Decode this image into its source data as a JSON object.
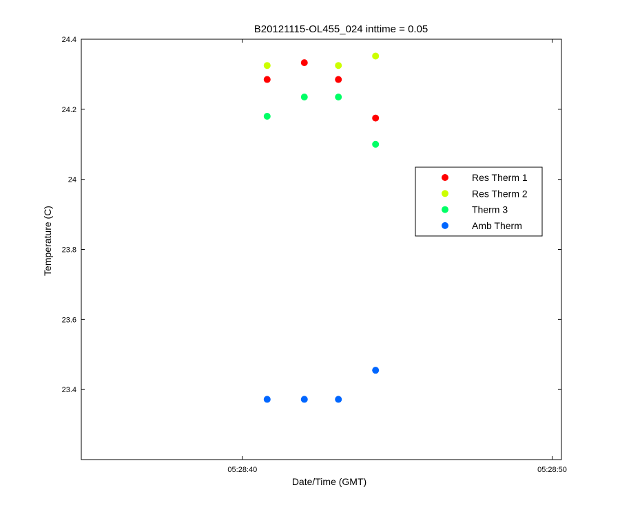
{
  "chart_data": {
    "type": "scatter",
    "title": "B20121115-OL455_024 inttime = 0.05",
    "xlabel": "Date/Time (GMT)",
    "ylabel": "Temperature (C)",
    "x_unit": "seconds",
    "xlim": [
      "05:28:34.8",
      "05:28:50.3"
    ],
    "ylim": [
      23.2,
      24.4
    ],
    "x_ticks": [
      {
        "time": "05:28:40",
        "label": "05:28:40"
      },
      {
        "time": "05:28:50",
        "label": "05:28:50"
      }
    ],
    "y_ticks": [
      {
        "value": 23.4,
        "label": "23.4"
      },
      {
        "value": 23.6,
        "label": "23.6"
      },
      {
        "value": 23.8,
        "label": "23.8"
      },
      {
        "value": 24.0,
        "label": "24"
      },
      {
        "value": 24.2,
        "label": "24.2"
      },
      {
        "value": 24.4,
        "label": "24.4"
      }
    ],
    "x": [
      "05:28:40.8",
      "05:28:42.0",
      "05:28:43.1",
      "05:28:44.3"
    ],
    "series": [
      {
        "name": "Res Therm 1",
        "color": "#ff0000",
        "values": [
          24.285,
          24.333,
          24.285,
          24.175
        ]
      },
      {
        "name": "Res Therm 2",
        "color": "#ccff00",
        "values": [
          24.325,
          null,
          24.325,
          24.352
        ]
      },
      {
        "name": "Therm 3",
        "color": "#00ff66",
        "values": [
          24.18,
          24.235,
          24.235,
          24.1
        ]
      },
      {
        "name": "Amb Therm",
        "color": "#0066ff",
        "values": [
          23.372,
          23.372,
          23.372,
          23.455
        ]
      }
    ],
    "legend_position": "right",
    "grid": false
  }
}
